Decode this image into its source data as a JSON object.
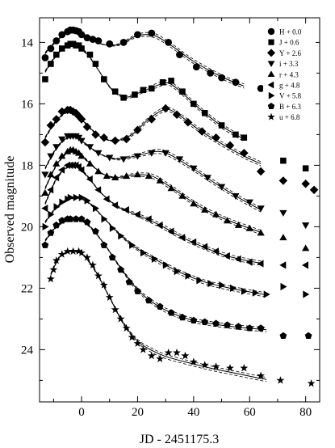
{
  "chart_data": {
    "type": "scatter",
    "xlabel": "JD - 2451175.3",
    "ylabel": "Observed magnitude",
    "xlim": [
      -15,
      85
    ],
    "ylim": [
      25.7,
      13.2
    ],
    "y_inverted": true,
    "x_ticks": [
      0,
      20,
      40,
      60,
      80
    ],
    "y_ticks": [
      14,
      16,
      18,
      20,
      22,
      24
    ],
    "grid": false,
    "legend_position": "top-right",
    "series": [
      {
        "name": "H + 0.0",
        "marker": "circle",
        "x": [
          -13,
          -11,
          -9,
          -7,
          -5,
          -4,
          -3,
          -2,
          -1,
          0,
          2,
          4,
          6,
          10,
          15,
          20,
          25,
          31,
          35,
          41,
          46,
          50,
          55,
          64
        ],
        "y": [
          14.5,
          14.2,
          13.95,
          13.75,
          13.65,
          13.6,
          13.6,
          13.62,
          13.65,
          13.75,
          13.85,
          13.9,
          13.95,
          14.05,
          14.0,
          13.75,
          13.7,
          14.0,
          14.4,
          14.8,
          15.0,
          15.15,
          15.3,
          15.5
        ],
        "model": [
          [
            -13,
            14.35
          ],
          [
            -9,
            13.95
          ],
          [
            -5,
            13.65
          ],
          [
            -2,
            13.62
          ],
          [
            2,
            13.82
          ],
          [
            7,
            14.05
          ],
          [
            13,
            14.08
          ],
          [
            20,
            13.78
          ],
          [
            26,
            13.78
          ],
          [
            32,
            14.1
          ],
          [
            40,
            14.62
          ],
          [
            50,
            15.12
          ],
          [
            58,
            15.42
          ]
        ]
      },
      {
        "name": "J + 0.6",
        "marker": "square",
        "x": [
          -13,
          -11,
          -9,
          -7,
          -5,
          -4,
          -3,
          -2,
          -1,
          0,
          3,
          5,
          8,
          12,
          15,
          19,
          22,
          25,
          29,
          32,
          36,
          40,
          44,
          50,
          55,
          58,
          72,
          80
        ],
        "y": [
          15.2,
          14.7,
          14.4,
          14.2,
          14.1,
          14.05,
          14.05,
          14.1,
          14.1,
          14.2,
          14.4,
          14.7,
          15.2,
          15.6,
          15.8,
          15.7,
          15.55,
          15.5,
          15.3,
          15.25,
          15.6,
          16.0,
          16.3,
          16.7,
          17.0,
          17.1,
          17.85,
          18.1
        ],
        "model": [
          [
            -13,
            14.95
          ],
          [
            -9,
            14.42
          ],
          [
            -5,
            14.12
          ],
          [
            -2,
            14.1
          ],
          [
            2,
            14.38
          ],
          [
            6,
            14.9
          ],
          [
            11,
            15.55
          ],
          [
            16,
            15.78
          ],
          [
            21,
            15.62
          ],
          [
            27,
            15.4
          ],
          [
            31,
            15.32
          ],
          [
            36,
            15.65
          ],
          [
            42,
            16.15
          ],
          [
            50,
            16.72
          ],
          [
            58,
            17.15
          ]
        ]
      },
      {
        "name": "Y + 2.6",
        "marker": "diamond",
        "x": [
          -13,
          -11,
          -9,
          -7,
          -5,
          -4,
          -3,
          -2,
          -1,
          0,
          2,
          5,
          8,
          12,
          16,
          20,
          25,
          30,
          34,
          38,
          43,
          48,
          53,
          58,
          64,
          72,
          80,
          83
        ],
        "y": [
          17.25,
          16.7,
          16.5,
          16.25,
          16.2,
          16.2,
          16.25,
          16.3,
          16.4,
          16.5,
          16.75,
          17.0,
          17.1,
          17.2,
          17.15,
          16.85,
          16.5,
          16.15,
          16.35,
          16.6,
          16.9,
          17.1,
          17.35,
          17.6,
          18.2,
          18.5,
          18.6,
          18.8
        ],
        "model": [
          [
            -13,
            17.1
          ],
          [
            -9,
            16.55
          ],
          [
            -5,
            16.25
          ],
          [
            -2,
            16.28
          ],
          [
            2,
            16.7
          ],
          [
            7,
            17.08
          ],
          [
            12,
            17.2
          ],
          [
            18,
            17.0
          ],
          [
            24,
            16.5
          ],
          [
            30,
            16.18
          ],
          [
            35,
            16.38
          ],
          [
            42,
            16.85
          ],
          [
            50,
            17.3
          ],
          [
            58,
            17.7
          ],
          [
            64,
            17.95
          ]
        ]
      },
      {
        "name": "i + 3.3",
        "marker": "triangle-down",
        "x": [
          -13,
          -11,
          -9,
          -7,
          -5,
          -4,
          -3,
          -2,
          -1,
          0,
          3,
          6,
          10,
          15,
          20,
          25,
          30,
          35,
          40,
          45,
          50,
          55,
          60,
          64,
          72,
          80
        ],
        "y": [
          18.3,
          17.7,
          17.4,
          17.15,
          17.05,
          17.05,
          17.05,
          17.05,
          17.1,
          17.2,
          17.4,
          17.6,
          17.75,
          17.8,
          17.7,
          17.6,
          17.6,
          17.8,
          18.1,
          18.4,
          18.7,
          19.0,
          19.2,
          19.4,
          19.55,
          19.95
        ],
        "model": [
          [
            -13,
            18.1
          ],
          [
            -9,
            17.45
          ],
          [
            -5,
            17.1
          ],
          [
            -2,
            17.08
          ],
          [
            2,
            17.35
          ],
          [
            7,
            17.65
          ],
          [
            13,
            17.8
          ],
          [
            20,
            17.68
          ],
          [
            27,
            17.55
          ],
          [
            32,
            17.68
          ],
          [
            40,
            18.12
          ],
          [
            48,
            18.6
          ],
          [
            56,
            19.05
          ],
          [
            64,
            19.45
          ]
        ]
      },
      {
        "name": "r + 4.3",
        "marker": "triangle-up",
        "x": [
          -13,
          -11,
          -9,
          -7,
          -5,
          -4,
          -3,
          -2,
          -1,
          0,
          3,
          6,
          9,
          12,
          16,
          20,
          24,
          28,
          32,
          36,
          40,
          44,
          48,
          52,
          56,
          60,
          64,
          72,
          80
        ],
        "y": [
          18.9,
          18.3,
          17.95,
          17.7,
          17.55,
          17.5,
          17.5,
          17.55,
          17.6,
          17.7,
          17.95,
          18.2,
          18.35,
          18.4,
          18.35,
          18.3,
          18.35,
          18.5,
          18.75,
          19.0,
          19.25,
          19.45,
          19.6,
          19.8,
          19.95,
          20.05,
          20.2,
          20.35,
          20.7
        ],
        "model": [
          [
            -13,
            18.75
          ],
          [
            -9,
            18.0
          ],
          [
            -5,
            17.58
          ],
          [
            -2,
            17.55
          ],
          [
            2,
            17.85
          ],
          [
            7,
            18.25
          ],
          [
            12,
            18.4
          ],
          [
            18,
            18.32
          ],
          [
            25,
            18.35
          ],
          [
            32,
            18.72
          ],
          [
            40,
            19.22
          ],
          [
            48,
            19.62
          ],
          [
            56,
            19.92
          ],
          [
            64,
            20.18
          ]
        ]
      },
      {
        "name": "g + 4.8",
        "marker": "triangle-left",
        "x": [
          -13,
          -11,
          -9,
          -7,
          -5,
          -4,
          -3,
          -2,
          -1,
          0,
          3,
          6,
          9,
          12,
          16,
          20,
          24,
          28,
          32,
          36,
          40,
          44,
          48,
          52,
          56,
          60,
          64,
          72,
          80
        ],
        "y": [
          19.4,
          18.8,
          18.4,
          18.15,
          18.0,
          18.0,
          18.0,
          18.0,
          18.05,
          18.15,
          18.45,
          18.8,
          19.1,
          19.3,
          19.45,
          19.6,
          19.75,
          19.95,
          20.15,
          20.35,
          20.5,
          20.65,
          20.8,
          20.95,
          21.05,
          21.15,
          21.2,
          21.25,
          21.25
        ],
        "model": [
          [
            -13,
            19.25
          ],
          [
            -9,
            18.45
          ],
          [
            -5,
            18.05
          ],
          [
            -2,
            18.02
          ],
          [
            2,
            18.35
          ],
          [
            7,
            18.9
          ],
          [
            13,
            19.35
          ],
          [
            20,
            19.62
          ],
          [
            28,
            19.95
          ],
          [
            36,
            20.35
          ],
          [
            44,
            20.68
          ],
          [
            52,
            20.95
          ],
          [
            60,
            21.12
          ],
          [
            64,
            21.18
          ]
        ]
      },
      {
        "name": "V + 5.8",
        "marker": "triangle-right",
        "x": [
          -13,
          -11,
          -9,
          -7,
          -5,
          -4,
          -2,
          0,
          2,
          5,
          8,
          11,
          14,
          18,
          22,
          26,
          30,
          34,
          38,
          42,
          46,
          50,
          54,
          58,
          62,
          66,
          72,
          80
        ],
        "y": [
          20.0,
          19.6,
          19.35,
          19.2,
          19.1,
          19.05,
          19.05,
          19.05,
          19.15,
          19.4,
          19.75,
          20.05,
          20.3,
          20.6,
          20.85,
          21.05,
          21.25,
          21.45,
          21.6,
          21.75,
          21.85,
          21.9,
          22.0,
          22.1,
          22.15,
          22.2,
          21.95,
          22.2
        ],
        "model": [
          [
            -13,
            19.85
          ],
          [
            -9,
            19.38
          ],
          [
            -5,
            19.12
          ],
          [
            -1,
            19.05
          ],
          [
            3,
            19.25
          ],
          [
            8,
            19.72
          ],
          [
            14,
            20.28
          ],
          [
            20,
            20.72
          ],
          [
            28,
            21.15
          ],
          [
            36,
            21.52
          ],
          [
            44,
            21.8
          ],
          [
            52,
            21.98
          ],
          [
            60,
            22.12
          ],
          [
            66,
            22.22
          ]
        ]
      },
      {
        "name": "B + 6.3",
        "marker": "pentagon",
        "x": [
          -13,
          -11,
          -9,
          -7,
          -5,
          -4,
          -2,
          0,
          2,
          5,
          8,
          11,
          14,
          17,
          20,
          24,
          28,
          32,
          36,
          40,
          44,
          48,
          52,
          56,
          60,
          64,
          72,
          81
        ],
        "y": [
          20.6,
          20.2,
          19.95,
          19.8,
          19.75,
          19.75,
          19.75,
          19.75,
          19.85,
          20.15,
          20.6,
          21.0,
          21.4,
          21.8,
          22.1,
          22.4,
          22.6,
          22.8,
          22.95,
          23.05,
          23.1,
          23.15,
          23.2,
          23.25,
          23.3,
          23.3,
          23.55,
          23.55
        ],
        "model": [
          [
            -13,
            20.45
          ],
          [
            -9,
            20.0
          ],
          [
            -5,
            19.78
          ],
          [
            -1,
            19.75
          ],
          [
            3,
            20.0
          ],
          [
            8,
            20.55
          ],
          [
            14,
            21.35
          ],
          [
            20,
            22.05
          ],
          [
            26,
            22.5
          ],
          [
            32,
            22.8
          ],
          [
            40,
            23.05
          ],
          [
            48,
            23.18
          ],
          [
            56,
            23.27
          ],
          [
            66,
            23.35
          ]
        ]
      },
      {
        "name": "u + 6.8",
        "marker": "star",
        "x": [
          -11,
          -10,
          -9,
          -7,
          -5,
          -3,
          -1,
          0,
          2,
          4,
          6,
          8,
          10,
          12,
          14,
          16,
          18,
          20,
          22,
          25,
          28,
          31,
          34,
          37,
          40,
          44,
          48,
          53,
          58,
          64,
          71,
          82
        ],
        "y": [
          21.7,
          21.4,
          21.1,
          20.9,
          20.8,
          20.8,
          20.8,
          20.85,
          21.0,
          21.25,
          21.6,
          21.9,
          22.3,
          22.7,
          23.0,
          23.3,
          23.6,
          23.8,
          24.0,
          24.2,
          24.3,
          24.1,
          24.1,
          24.2,
          24.4,
          24.5,
          24.55,
          24.6,
          24.6,
          24.85,
          25.0,
          25.1
        ],
        "model": [
          [
            -11,
            21.55
          ],
          [
            -8,
            21.0
          ],
          [
            -5,
            20.82
          ],
          [
            -2,
            20.8
          ],
          [
            1,
            20.95
          ],
          [
            5,
            21.45
          ],
          [
            10,
            22.3
          ],
          [
            15,
            23.15
          ],
          [
            20,
            23.72
          ],
          [
            25,
            24.02
          ],
          [
            30,
            24.22
          ],
          [
            38,
            24.42
          ],
          [
            46,
            24.6
          ],
          [
            54,
            24.75
          ],
          [
            62,
            24.9
          ],
          [
            66,
            24.97
          ]
        ]
      }
    ]
  }
}
